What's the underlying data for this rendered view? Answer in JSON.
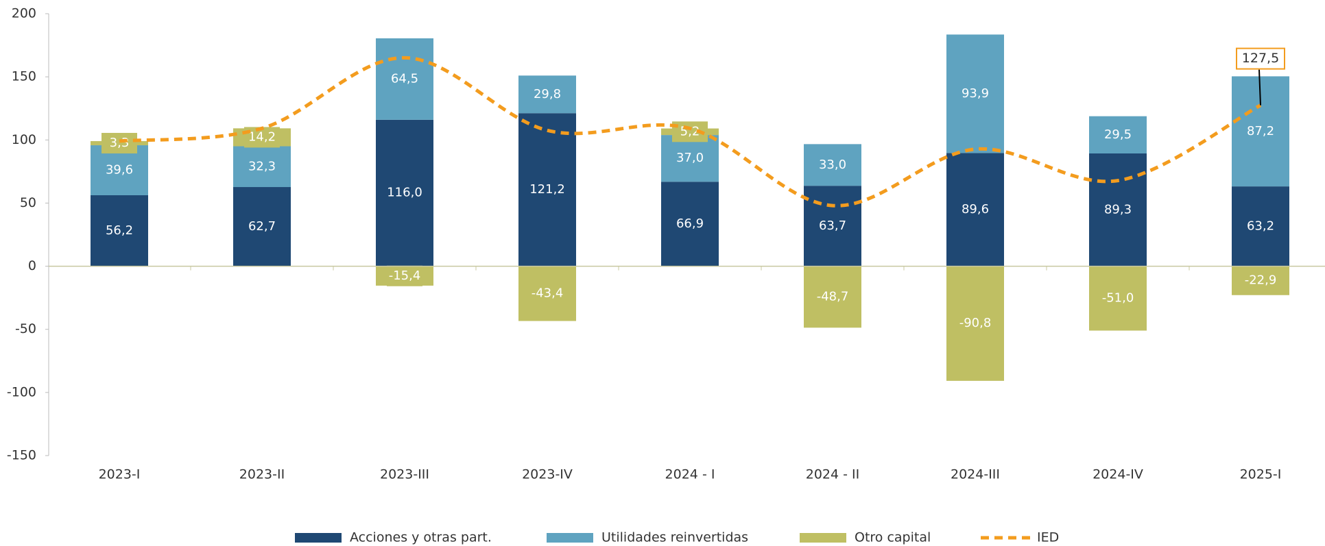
{
  "chart_data": {
    "type": "bar",
    "stacked": true,
    "categories": [
      "2023-I",
      "2023-II",
      "2023-III",
      "2023-IV",
      "2024 - I",
      "2024 - II",
      "2024-III",
      "2024-IV",
      "2025-I"
    ],
    "series": [
      {
        "name": "Acciones y otras part.",
        "color": "#1f4873",
        "values": [
          56.2,
          62.7,
          116.0,
          121.2,
          66.9,
          63.7,
          89.6,
          89.3,
          63.2
        ],
        "value_labels": [
          "56,2",
          "62,7",
          "116,0",
          "121,2",
          "66,9",
          "63,7",
          "89,6",
          "89,3",
          "63,2"
        ]
      },
      {
        "name": "Utilidades reinvertidas",
        "color": "#5fa3c0",
        "values": [
          39.6,
          32.3,
          64.5,
          29.8,
          37.0,
          33.0,
          93.9,
          29.5,
          87.2
        ],
        "value_labels": [
          "39,6",
          "32,3",
          "64,5",
          "29,8",
          "37,0",
          "33,0",
          "93,9",
          "29,5",
          "87,2"
        ]
      },
      {
        "name": "Otro capital",
        "color": "#bfbf63",
        "values": [
          3.3,
          14.2,
          -15.4,
          -43.4,
          5.2,
          -48.7,
          -90.8,
          -51.0,
          -22.9
        ],
        "value_labels": [
          "3,3",
          "14,2",
          "-15,4",
          "-43,4",
          "5,2",
          "-48,7",
          "-90,8",
          "-51,0",
          "-22,9"
        ]
      },
      {
        "name": "IED",
        "type": "line",
        "color": "#f39c1e",
        "values": [
          99.1,
          109.2,
          165.1,
          107.6,
          109.1,
          48.0,
          92.7,
          67.8,
          127.5
        ],
        "value_labels": [
          null,
          null,
          null,
          null,
          null,
          null,
          null,
          null,
          "127,5"
        ]
      }
    ],
    "ylim": [
      -150,
      200
    ],
    "yticks": [
      -150,
      -100,
      -50,
      0,
      50,
      100,
      150,
      200
    ],
    "legend": "bottom"
  }
}
